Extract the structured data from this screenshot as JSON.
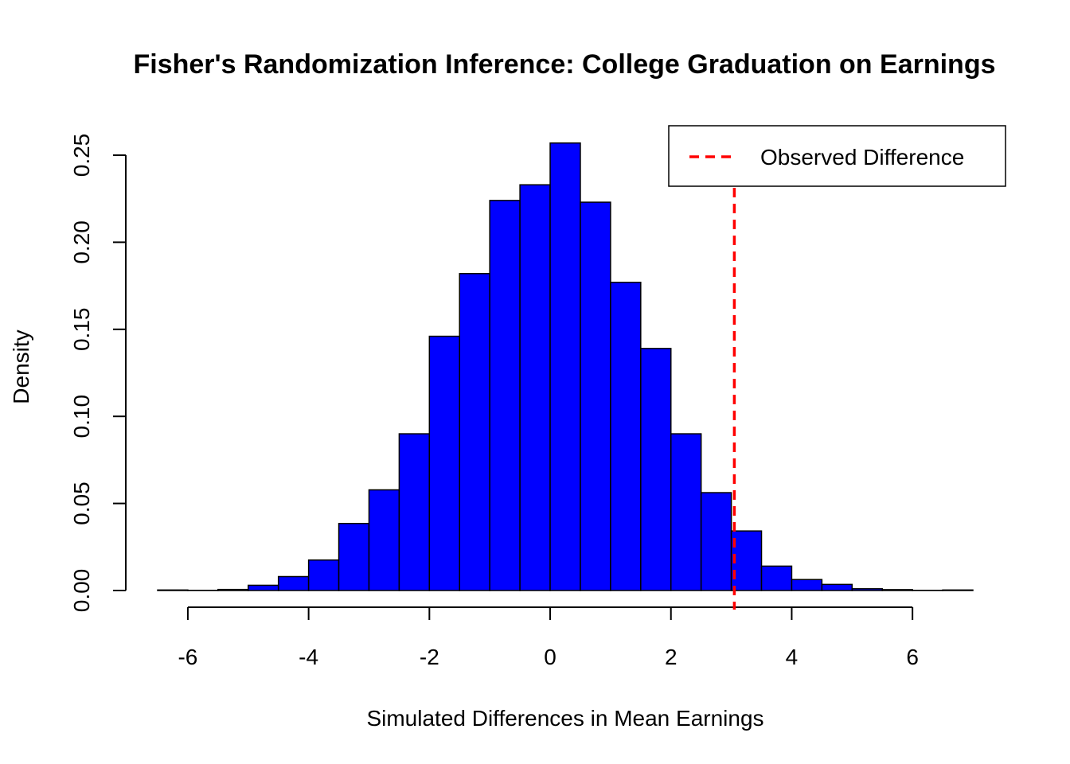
{
  "chart_data": {
    "type": "bar",
    "title": "Fisher's Randomization Inference: College Graduation on Earnings",
    "xlabel": "Simulated Differences in Mean Earnings",
    "ylabel": "Density",
    "xlim": [
      -6.5,
      7
    ],
    "ylim": [
      0,
      0.26
    ],
    "x_ticks": [
      -6,
      -4,
      -2,
      0,
      2,
      4,
      6
    ],
    "x_tick_labels": [
      "-6",
      "-4",
      "-2",
      "0",
      "2",
      "4",
      "6"
    ],
    "y_ticks": [
      0,
      0.05,
      0.1,
      0.15,
      0.2,
      0.25
    ],
    "y_tick_labels": [
      "0.00",
      "0.05",
      "0.10",
      "0.15",
      "0.20",
      "0.25"
    ],
    "bin_width": 0.5,
    "bins": [
      {
        "x0": -6.5,
        "x1": -6.0,
        "density": 0.0003
      },
      {
        "x0": -6.0,
        "x1": -5.5,
        "density": 0.0001
      },
      {
        "x0": -5.5,
        "x1": -5.0,
        "density": 0.0006
      },
      {
        "x0": -5.0,
        "x1": -4.5,
        "density": 0.003
      },
      {
        "x0": -4.5,
        "x1": -4.0,
        "density": 0.008
      },
      {
        "x0": -4.0,
        "x1": -3.5,
        "density": 0.0175
      },
      {
        "x0": -3.5,
        "x1": -3.0,
        "density": 0.0385
      },
      {
        "x0": -3.0,
        "x1": -2.5,
        "density": 0.0578
      },
      {
        "x0": -2.5,
        "x1": -2.0,
        "density": 0.09
      },
      {
        "x0": -2.0,
        "x1": -1.5,
        "density": 0.146
      },
      {
        "x0": -1.5,
        "x1": -1.0,
        "density": 0.182
      },
      {
        "x0": -1.0,
        "x1": -0.5,
        "density": 0.224
      },
      {
        "x0": -0.5,
        "x1": 0.0,
        "density": 0.233
      },
      {
        "x0": 0.0,
        "x1": 0.5,
        "density": 0.257
      },
      {
        "x0": 0.5,
        "x1": 1.0,
        "density": 0.223
      },
      {
        "x0": 1.0,
        "x1": 1.5,
        "density": 0.177
      },
      {
        "x0": 1.5,
        "x1": 2.0,
        "density": 0.139
      },
      {
        "x0": 2.0,
        "x1": 2.5,
        "density": 0.09
      },
      {
        "x0": 2.5,
        "x1": 3.0,
        "density": 0.0562
      },
      {
        "x0": 3.0,
        "x1": 3.5,
        "density": 0.0342
      },
      {
        "x0": 3.5,
        "x1": 4.0,
        "density": 0.014
      },
      {
        "x0": 4.0,
        "x1": 4.5,
        "density": 0.0063
      },
      {
        "x0": 4.5,
        "x1": 5.0,
        "density": 0.0035
      },
      {
        "x0": 5.0,
        "x1": 5.5,
        "density": 0.001
      },
      {
        "x0": 5.5,
        "x1": 6.0,
        "density": 0.0005
      },
      {
        "x0": 6.0,
        "x1": 6.5,
        "density": 0.0001
      },
      {
        "x0": 6.5,
        "x1": 7.0,
        "density": 0.0003
      }
    ],
    "bar_color": "#0000ff",
    "bar_border_color": "#000000",
    "reference_line": {
      "name": "Observed Difference",
      "x": 3.05,
      "color": "#ff0000",
      "style": "dashed"
    },
    "legend": {
      "placement": "top-right",
      "entries": [
        "Observed Difference"
      ]
    },
    "grid": false
  }
}
